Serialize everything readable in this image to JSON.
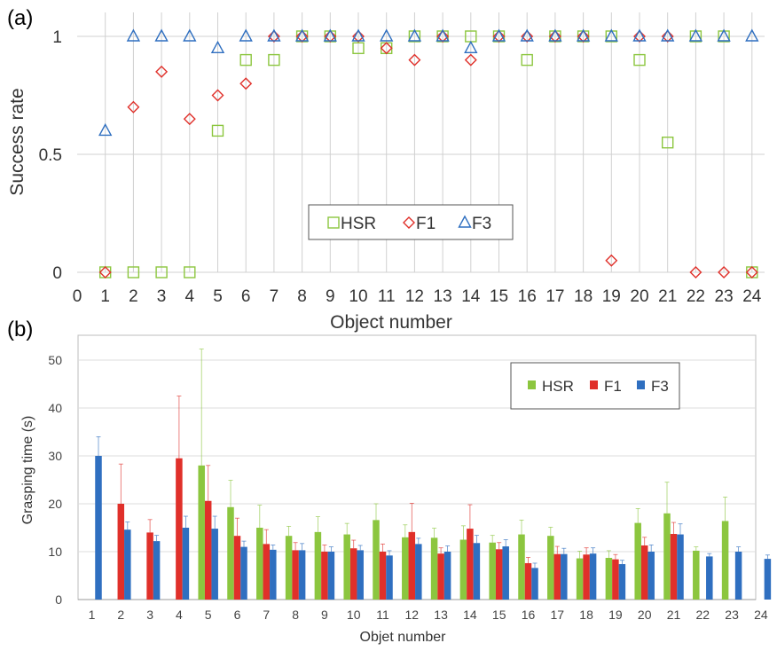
{
  "chart_data": [
    {
      "panel_label": "(a)",
      "type": "scatter",
      "xlabel": "Object number",
      "ylabel": "Success rate",
      "x_ticks": [
        0,
        1,
        2,
        3,
        4,
        5,
        6,
        7,
        8,
        9,
        10,
        11,
        12,
        13,
        14,
        15,
        16,
        17,
        18,
        19,
        20,
        21,
        22,
        23,
        24
      ],
      "y_ticks": [
        "0",
        "0.5",
        "1"
      ],
      "ylim": [
        0,
        1
      ],
      "xlim": [
        0,
        24
      ],
      "grid": "vertical and horizontal",
      "legend_position": "bottom-center",
      "x": [
        1,
        2,
        3,
        4,
        5,
        6,
        7,
        8,
        9,
        10,
        11,
        12,
        13,
        14,
        15,
        16,
        17,
        18,
        19,
        20,
        21,
        22,
        23,
        24
      ],
      "series": [
        {
          "name": "HSR",
          "marker": "square",
          "color": "#8cc63f",
          "values": [
            0,
            0,
            0,
            0,
            0.6,
            0.9,
            0.9,
            1,
            1,
            0.95,
            0.95,
            1,
            1,
            1,
            1,
            0.9,
            1,
            1,
            1,
            0.9,
            0.55,
            1,
            1,
            0
          ]
        },
        {
          "name": "F1",
          "marker": "diamond",
          "color": "#e0302a",
          "values": [
            0,
            0.7,
            0.85,
            0.65,
            0.75,
            0.8,
            1,
            1,
            1,
            1,
            0.95,
            0.9,
            1,
            0.9,
            1,
            1,
            1,
            1,
            0.05,
            1,
            1,
            0,
            0,
            0
          ]
        },
        {
          "name": "F3",
          "marker": "triangle",
          "color": "#2f6fc0",
          "values": [
            0.6,
            1,
            1,
            1,
            0.95,
            1,
            1,
            1,
            1,
            1,
            1,
            1,
            1,
            0.95,
            1,
            1,
            1,
            1,
            1,
            1,
            1,
            1,
            1,
            1
          ]
        }
      ]
    },
    {
      "panel_label": "(b)",
      "type": "bar",
      "xlabel": "Objet number",
      "ylabel": "Grasping time (s)",
      "categories": [
        "1",
        "2",
        "3",
        "4",
        "5",
        "6",
        "7",
        "8",
        "9",
        "10",
        "11",
        "12",
        "13",
        "14",
        "15",
        "16",
        "17",
        "18",
        "19",
        "20",
        "21",
        "22",
        "23",
        "24"
      ],
      "y_ticks": [
        "0",
        "10",
        "20",
        "30",
        "40",
        "50"
      ],
      "ylim": [
        0,
        55
      ],
      "grid": "horizontal",
      "legend_position": "top-right",
      "series": [
        {
          "name": "HSR",
          "color": "#8cc63f",
          "values": [
            null,
            null,
            null,
            null,
            28,
            19.3,
            15,
            13.3,
            14.1,
            13.6,
            16.6,
            13,
            12.9,
            12.5,
            11.9,
            13.6,
            13.3,
            8.6,
            8.7,
            16,
            18,
            10.2,
            16.4,
            null
          ],
          "errors": [
            null,
            null,
            null,
            null,
            24.3,
            5.6,
            4.7,
            2,
            3.2,
            2.3,
            3.4,
            2.6,
            2,
            2.9,
            1.5,
            3,
            1.8,
            1.5,
            1.5,
            3,
            6.5,
            0.8,
            5,
            null
          ]
        },
        {
          "name": "F1",
          "color": "#e0302a",
          "values": [
            null,
            20,
            14,
            29.5,
            20.6,
            13.3,
            11.6,
            10.3,
            10,
            10.7,
            10,
            14.1,
            9.6,
            14.8,
            10.5,
            7.6,
            9.5,
            9.4,
            8.4,
            11.3,
            13.7,
            null,
            null,
            null
          ],
          "errors": [
            null,
            8.3,
            2.7,
            13,
            7.4,
            3.7,
            3,
            1.6,
            1.4,
            1.7,
            1.6,
            6,
            1.2,
            5,
            1.4,
            1.2,
            1.6,
            1.4,
            1,
            1.7,
            2.4,
            null,
            null,
            null
          ]
        },
        {
          "name": "F3",
          "color": "#2f6fc0",
          "values": [
            30,
            14.6,
            12.2,
            15,
            14.8,
            11,
            10.4,
            10.3,
            10,
            10.3,
            9.2,
            11.6,
            10,
            11.8,
            11.1,
            6.6,
            9.5,
            9.6,
            7.4,
            10,
            13.6,
            9,
            10,
            8.5
          ],
          "errors": [
            4,
            1.6,
            1.2,
            2.4,
            2.6,
            1.2,
            1,
            1.4,
            1,
            1,
            1,
            1.2,
            1.2,
            1.6,
            1.4,
            1,
            1.2,
            1.2,
            0.8,
            1.4,
            2.2,
            0.6,
            1,
            0.8
          ]
        }
      ]
    }
  ]
}
